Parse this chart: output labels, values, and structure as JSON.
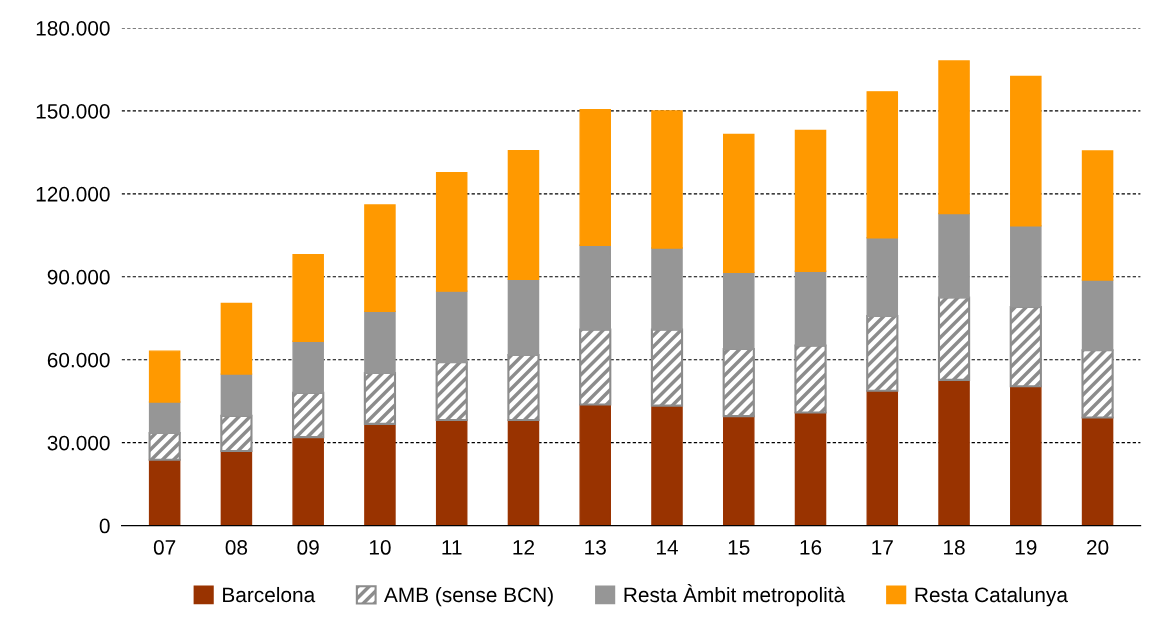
{
  "chart_data": {
    "type": "bar",
    "stacked": true,
    "categories": [
      "07",
      "08",
      "09",
      "10",
      "11",
      "12",
      "13",
      "14",
      "15",
      "16",
      "17",
      "18",
      "19",
      "20"
    ],
    "series": [
      {
        "name": "Barcelona",
        "color": "#993300",
        "values": [
          23800,
          27000,
          32000,
          36800,
          38200,
          38200,
          43800,
          43400,
          39600,
          40900,
          48800,
          52700,
          50400,
          39100
        ]
      },
      {
        "name": "AMB (sense BCN)",
        "color": "#8c8c8c",
        "values": [
          9700,
          12700,
          16000,
          18400,
          20900,
          23500,
          27100,
          27500,
          24300,
          24200,
          27000,
          29800,
          28700,
          24300
        ]
      },
      {
        "name": "Resta Àmbit metropolità",
        "color": "#969696",
        "values": [
          11200,
          15100,
          18700,
          22300,
          25700,
          27400,
          30500,
          29500,
          27700,
          26900,
          28300,
          30400,
          29300,
          25400
        ]
      },
      {
        "name": "Resta Catalunya",
        "color": "#ff9900",
        "values": [
          18400,
          25600,
          31300,
          38500,
          42900,
          46500,
          49000,
          49600,
          49900,
          50900,
          52800,
          55200,
          54100,
          46700
        ]
      }
    ],
    "ylim": [
      0,
      180000
    ],
    "yticks": [
      0,
      {
        "value": 30000,
        "label": "30.000"
      },
      {
        "value": 60000,
        "label": "60.000"
      },
      {
        "value": 90000,
        "label": "90.000"
      },
      {
        "value": 120000,
        "label": "120.000"
      },
      {
        "value": 150000,
        "label": "150.000"
      },
      {
        "value": 180000,
        "label": "180.000"
      }
    ],
    "grid": "y",
    "legend": "bottom"
  }
}
